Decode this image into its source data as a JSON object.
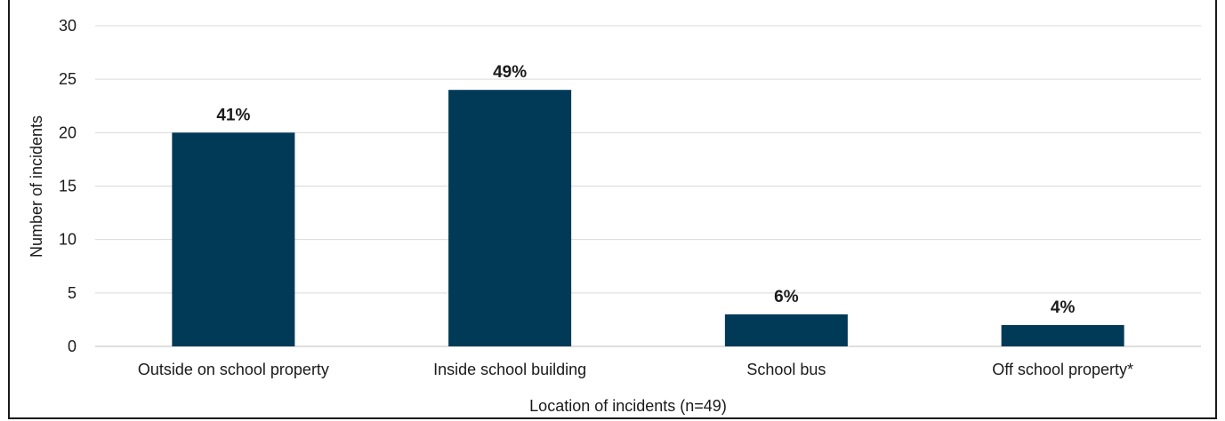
{
  "chart_data": {
    "type": "bar",
    "title": "",
    "xlabel": "Location of incidents (n=49)",
    "ylabel": "Number of incidents",
    "categories": [
      "Outside on school property",
      "Inside school building",
      "School bus",
      "Off school property*"
    ],
    "values": [
      20,
      24,
      3,
      2
    ],
    "data_labels": [
      "41%",
      "49%",
      "6%",
      "4%"
    ],
    "ylim": [
      0,
      30
    ],
    "yticks": [
      "0",
      "5",
      "10",
      "15",
      "20",
      "25",
      "30"
    ],
    "grid": true,
    "legend": "none",
    "bar_color": "#003a57",
    "grid_color": "#d9d9d9"
  }
}
